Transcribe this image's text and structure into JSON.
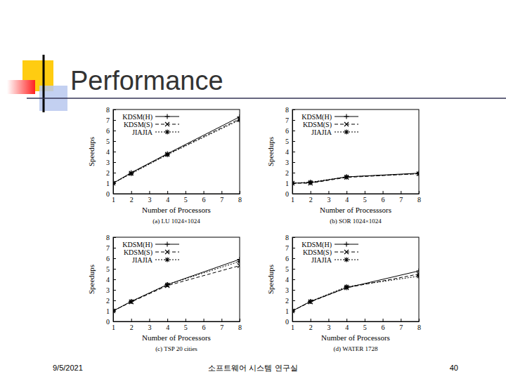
{
  "slide": {
    "title": "Performance",
    "footer": {
      "date": "9/5/2021",
      "lab": "소프트웨어 시스템 연구실",
      "page": "40"
    }
  },
  "chart_data": [
    {
      "type": "line",
      "title": "(a) LU 1024×1024",
      "x_label": "Number of Processors",
      "y_label": "Speedups",
      "x": [
        1,
        2,
        4,
        8
      ],
      "xlim": [
        1,
        8
      ],
      "xticks": [
        1,
        2,
        3,
        4,
        5,
        6,
        7,
        8
      ],
      "ylim": [
        0,
        8
      ],
      "yticks": [
        0,
        1,
        2,
        3,
        4,
        5,
        6,
        7,
        8
      ],
      "legend": "upper left",
      "series": [
        {
          "name": "KDSM(H)",
          "color": "#000000",
          "marker": "plus",
          "line_style": "solid",
          "values": [
            1,
            2,
            3.8,
            7.3
          ]
        },
        {
          "name": "KDSM(S)",
          "color": "#000000",
          "marker": "cross",
          "line_style": "dashed",
          "values": [
            1,
            1.95,
            3.75,
            7.1
          ]
        },
        {
          "name": "JIAJIA",
          "color": "#000000",
          "marker": "star",
          "line_style": "dotted",
          "values": [
            1,
            1.9,
            3.7,
            7.0
          ]
        }
      ]
    },
    {
      "type": "line",
      "title": "(b) SOR 1024×1024",
      "x_label": "Number of Processsors",
      "y_label": "Speedups",
      "x": [
        1,
        2,
        4,
        8
      ],
      "xlim": [
        1,
        8
      ],
      "xticks": [
        1,
        2,
        3,
        4,
        5,
        6,
        7,
        8
      ],
      "ylim": [
        0,
        8
      ],
      "yticks": [
        0,
        1,
        2,
        3,
        4,
        5,
        6,
        7,
        8
      ],
      "legend": "upper left",
      "series": [
        {
          "name": "KDSM(H)",
          "color": "#000000",
          "marker": "plus",
          "line_style": "solid",
          "values": [
            1,
            1.05,
            1.6,
            1.95
          ]
        },
        {
          "name": "KDSM(S)",
          "color": "#000000",
          "marker": "cross",
          "line_style": "dashed",
          "values": [
            1,
            1.0,
            1.55,
            1.9
          ]
        },
        {
          "name": "JIAJIA",
          "color": "#000000",
          "marker": "star",
          "line_style": "dotted",
          "values": [
            1,
            1.1,
            1.6,
            1.9
          ]
        }
      ]
    },
    {
      "type": "line",
      "title": "(c) TSP 20 cities",
      "x_label": "Number of Processors",
      "y_label": "Speedups",
      "x": [
        1,
        2,
        4,
        8
      ],
      "xlim": [
        1,
        8
      ],
      "xticks": [
        1,
        2,
        3,
        4,
        5,
        6,
        7,
        8
      ],
      "ylim": [
        0,
        8
      ],
      "yticks": [
        0,
        1,
        2,
        3,
        4,
        5,
        6,
        7,
        8
      ],
      "legend": "upper left",
      "series": [
        {
          "name": "KDSM(H)",
          "color": "#000000",
          "marker": "plus",
          "line_style": "solid",
          "values": [
            1,
            1.9,
            3.5,
            5.9
          ]
        },
        {
          "name": "KDSM(S)",
          "color": "#000000",
          "marker": "cross",
          "line_style": "dashed",
          "values": [
            1,
            1.85,
            3.4,
            5.3
          ]
        },
        {
          "name": "JIAJIA",
          "color": "#000000",
          "marker": "star",
          "line_style": "dotted",
          "values": [
            1,
            1.9,
            3.5,
            5.7
          ]
        }
      ]
    },
    {
      "type": "line",
      "title": "(d) WATER 1728",
      "x_label": "Number of Processors",
      "y_label": "Speedups",
      "x": [
        1,
        2,
        4,
        8
      ],
      "xlim": [
        1,
        8
      ],
      "xticks": [
        1,
        2,
        3,
        4,
        5,
        6,
        7,
        8
      ],
      "ylim": [
        0,
        8
      ],
      "yticks": [
        0,
        1,
        2,
        3,
        4,
        5,
        6,
        7,
        8
      ],
      "legend": "upper left",
      "series": [
        {
          "name": "KDSM(H)",
          "color": "#000000",
          "marker": "plus",
          "line_style": "solid",
          "values": [
            1,
            1.9,
            3.2,
            4.8
          ]
        },
        {
          "name": "KDSM(S)",
          "color": "#000000",
          "marker": "cross",
          "line_style": "dashed",
          "values": [
            1,
            1.85,
            3.2,
            4.5
          ]
        },
        {
          "name": "JIAJIA",
          "color": "#000000",
          "marker": "star",
          "line_style": "dotted",
          "values": [
            1,
            1.9,
            3.3,
            4.3
          ]
        }
      ]
    }
  ]
}
